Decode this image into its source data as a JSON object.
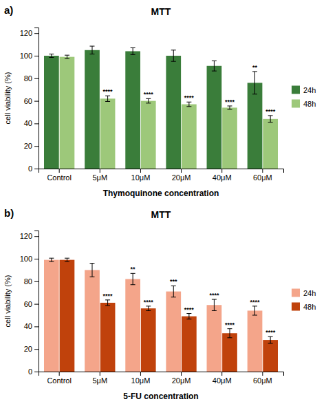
{
  "chart_data": [
    {
      "type": "bar",
      "panel_label": "a)",
      "title": "MTT",
      "xlabel": "Thymoquinone concentration",
      "ylabel": "cell viability (%)",
      "categories": [
        "Control",
        "5μM",
        "10μM",
        "20μM",
        "40μM",
        "60μM"
      ],
      "series": [
        {
          "name": "24h",
          "color": "#3a7d3a",
          "values": [
            100,
            105,
            104,
            100,
            91,
            76
          ],
          "errors": [
            1.5,
            3.5,
            3.0,
            5.0,
            4.5,
            10.0
          ],
          "significance": [
            null,
            null,
            null,
            null,
            null,
            "**"
          ]
        },
        {
          "name": "48h",
          "color": "#9dc87a",
          "values": [
            99,
            62,
            60,
            57,
            54,
            44
          ],
          "errors": [
            1.5,
            2.5,
            2.0,
            2.0,
            1.5,
            3.0
          ],
          "significance": [
            null,
            "****",
            "****",
            "****",
            "****",
            "****"
          ]
        }
      ],
      "ylim": [
        0,
        125
      ],
      "yticks": [
        0,
        20,
        40,
        60,
        80,
        100,
        120
      ],
      "legend": "right"
    },
    {
      "type": "bar",
      "panel_label": "b)",
      "title": "MTT",
      "xlabel": "5-FU concentration",
      "ylabel": "cell viability (%)",
      "categories": [
        "Control",
        "5μM",
        "10μM",
        "20μM",
        "40μM",
        "60μM"
      ],
      "series": [
        {
          "name": "24h",
          "color": "#f4a58a",
          "values": [
            99,
            90,
            82,
            71,
            59,
            54
          ],
          "errors": [
            1.5,
            6.0,
            5.0,
            5.0,
            5.0,
            4.0
          ],
          "significance": [
            null,
            null,
            "**",
            "***",
            "****",
            "****"
          ]
        },
        {
          "name": "48h",
          "color": "#c0420c",
          "values": [
            99,
            61,
            56,
            49,
            34,
            28
          ],
          "errors": [
            1.5,
            2.5,
            2.0,
            2.5,
            4.0,
            3.0
          ],
          "significance": [
            null,
            "****",
            "****",
            "****",
            "****",
            "****"
          ]
        }
      ],
      "ylim": [
        0,
        125
      ],
      "yticks": [
        0,
        20,
        40,
        60,
        80,
        100,
        120
      ],
      "legend": "right"
    }
  ]
}
